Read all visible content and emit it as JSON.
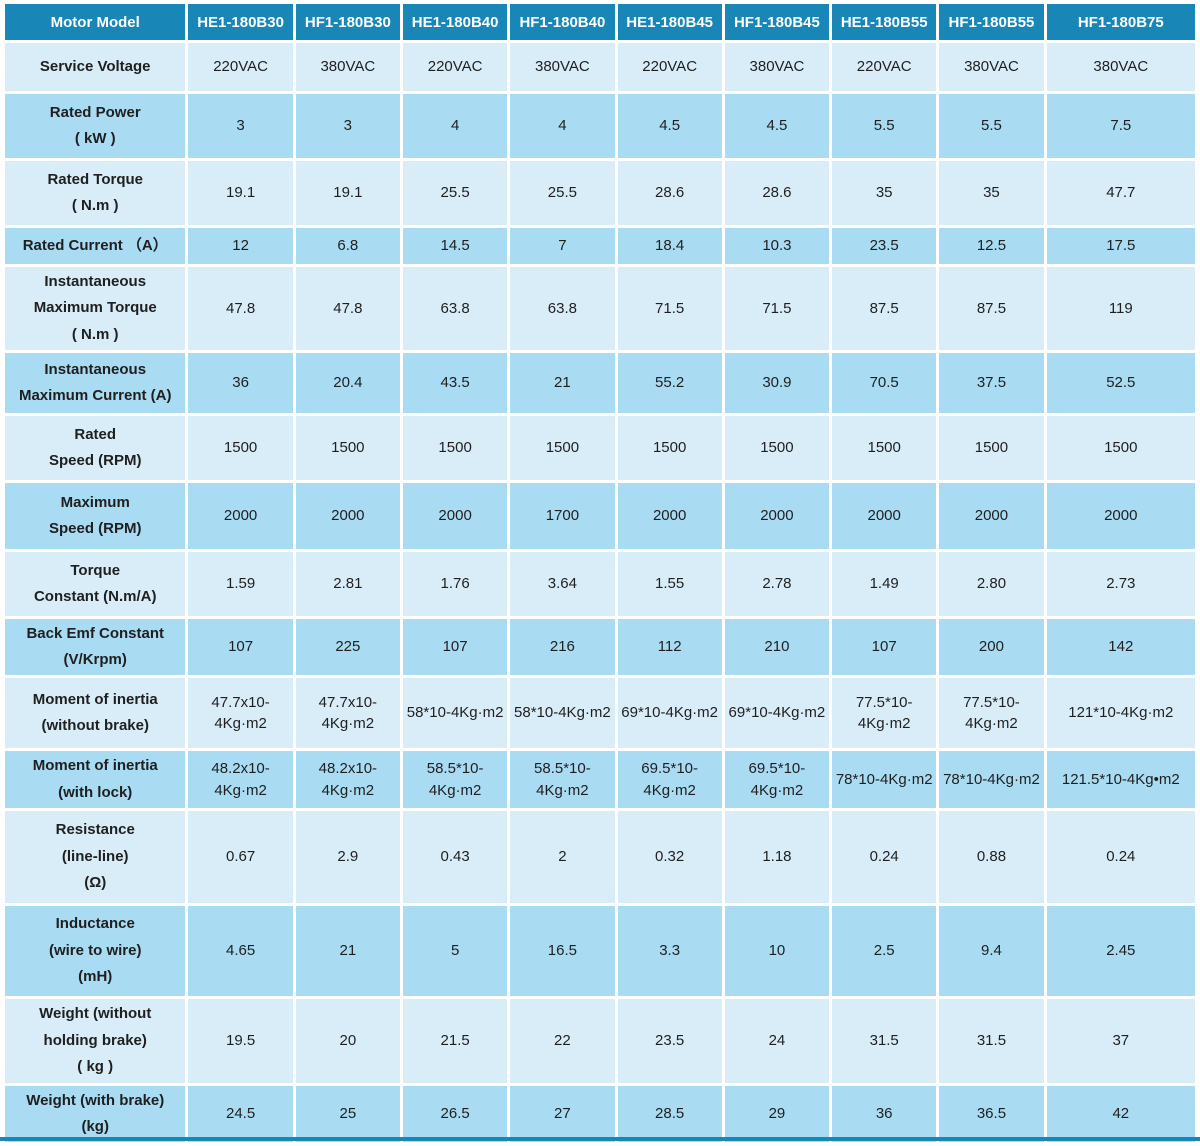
{
  "colors": {
    "header_bg": "#1886b6",
    "row_light": "#d9edf9",
    "row_medium": "#a9dbf3",
    "header_text": "#ffffff",
    "body_text": "#1f1f1f"
  },
  "table": {
    "columns": [
      "Motor Model",
      "HE1-180B30",
      "HF1-180B30",
      "HE1-180B40",
      "HF1-180B40",
      "HE1-180B45",
      "HF1-180B45",
      "HE1-180B55",
      "HF1-180B55",
      "HF1-180B75"
    ],
    "rows": [
      {
        "label": "Service Voltage",
        "values": [
          "220VAC",
          "380VAC",
          "220VAC",
          "380VAC",
          "220VAC",
          "380VAC",
          "220VAC",
          "380VAC",
          "380VAC"
        ]
      },
      {
        "label": "Rated Power\n( kW )",
        "values": [
          "3",
          "3",
          "4",
          "4",
          "4.5",
          "4.5",
          "5.5",
          "5.5",
          "7.5"
        ]
      },
      {
        "label": "Rated Torque\n( N.m )",
        "values": [
          "19.1",
          "19.1",
          "25.5",
          "25.5",
          "28.6",
          "28.6",
          "35",
          "35",
          "47.7"
        ]
      },
      {
        "label": "Rated Current （A）",
        "values": [
          "12",
          "6.8",
          "14.5",
          "7",
          "18.4",
          "10.3",
          "23.5",
          "12.5",
          "17.5"
        ]
      },
      {
        "label": "Instantaneous\nMaximum Torque\n( N.m )",
        "values": [
          "47.8",
          "47.8",
          "63.8",
          "63.8",
          "71.5",
          "71.5",
          "87.5",
          "87.5",
          "119"
        ]
      },
      {
        "label": "Instantaneous\nMaximum Current (A)",
        "values": [
          "36",
          "20.4",
          "43.5",
          "21",
          "55.2",
          "30.9",
          "70.5",
          "37.5",
          "52.5"
        ]
      },
      {
        "label": "Rated\nSpeed (RPM)",
        "values": [
          "1500",
          "1500",
          "1500",
          "1500",
          "1500",
          "1500",
          "1500",
          "1500",
          "1500"
        ]
      },
      {
        "label": "Maximum\nSpeed (RPM)",
        "values": [
          "2000",
          "2000",
          "2000",
          "1700",
          "2000",
          "2000",
          "2000",
          "2000",
          "2000"
        ]
      },
      {
        "label": "Torque\nConstant (N.m/A)",
        "values": [
          "1.59",
          "2.81",
          "1.76",
          "3.64",
          "1.55",
          "2.78",
          "1.49",
          "2.80",
          "2.73"
        ]
      },
      {
        "label": "Back Emf Constant\n(V/Krpm)",
        "values": [
          "107",
          "225",
          "107",
          "216",
          "112",
          "210",
          "107",
          "200",
          "142"
        ]
      },
      {
        "label": "Moment of inertia\n(without brake)",
        "values": [
          "47.7x10-4Kg·m2",
          "47.7x10-4Kg·m2",
          "58*10-4Kg·m2",
          "58*10-4Kg·m2",
          "69*10-4Kg·m2",
          "69*10-4Kg·m2",
          "77.5*10-4Kg·m2",
          "77.5*10-4Kg·m2",
          "121*10-4Kg·m2"
        ]
      },
      {
        "label": "Moment of inertia\n(with lock)",
        "values": [
          "48.2x10-4Kg·m2",
          "48.2x10-4Kg·m2",
          "58.5*10-4Kg·m2",
          "58.5*10-4Kg·m2",
          "69.5*10-4Kg·m2",
          "69.5*10-4Kg·m2",
          "78*10-4Kg·m2",
          "78*10-4Kg·m2",
          "121.5*10-4Kg•m2"
        ]
      },
      {
        "label": "Resistance\n(line-line)\n(Ω)",
        "values": [
          "0.67",
          "2.9",
          "0.43",
          "2",
          "0.32",
          "1.18",
          "0.24",
          "0.88",
          "0.24"
        ]
      },
      {
        "label": "Inductance\n(wire to wire)\n(mH)",
        "values": [
          "4.65",
          "21",
          "5",
          "16.5",
          "3.3",
          "10",
          "2.5",
          "9.4",
          "2.45"
        ]
      },
      {
        "label": "Weight (without\nholding brake)\n( kg )",
        "values": [
          "19.5",
          "20",
          "21.5",
          "22",
          "23.5",
          "24",
          "31.5",
          "31.5",
          "37"
        ]
      },
      {
        "label": "Weight (with brake)\n(kg)",
        "values": [
          "24.5",
          "25",
          "26.5",
          "27",
          "28.5",
          "29",
          "36",
          "36.5",
          "42"
        ]
      }
    ]
  }
}
